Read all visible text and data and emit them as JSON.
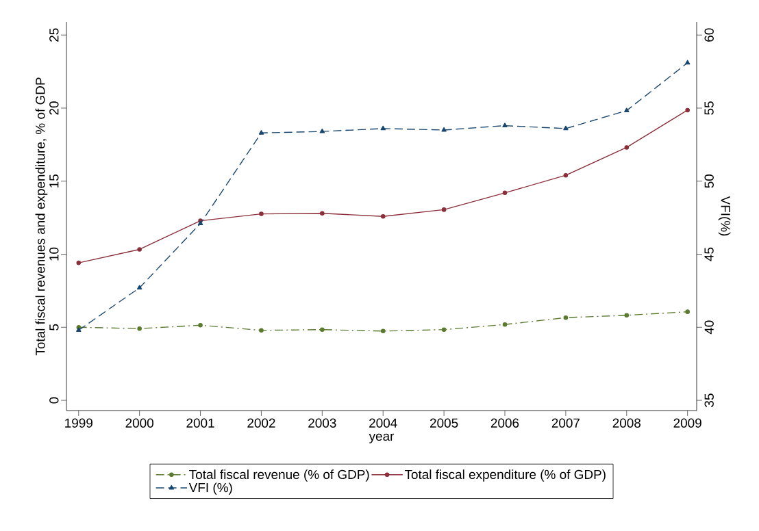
{
  "chart_data": {
    "type": "line",
    "xlabel": "year",
    "ylabel": "Total fiscal revenues and expenditure, % of GDP",
    "y2label": "VFI(%)",
    "x": [
      1999,
      2000,
      2001,
      2002,
      2003,
      2004,
      2005,
      2006,
      2007,
      2008,
      2009
    ],
    "xlim": [
      1998.8,
      2009.15
    ],
    "xticks": [
      1999,
      2000,
      2001,
      2002,
      2003,
      2004,
      2005,
      2006,
      2007,
      2008,
      2009
    ],
    "ylim": [
      -0.7,
      25.9
    ],
    "yticks": [
      0,
      5,
      10,
      15,
      20,
      25
    ],
    "y2lim": [
      34.3,
      60.9
    ],
    "y2ticks": [
      35,
      40,
      45,
      50,
      55,
      60
    ],
    "legend": "bottom",
    "grid": false,
    "series": [
      {
        "name": "Total fiscal revenue (% of GDP)",
        "color": "#5a7a2e",
        "marker": "circle",
        "line_style": "dashdot",
        "values": [
          5.0,
          4.91,
          5.14,
          4.79,
          4.84,
          4.74,
          4.84,
          5.19,
          5.66,
          5.82,
          6.06
        ]
      },
      {
        "name": "Total fiscal expenditure (% of GDP)",
        "color": "#8b2f3a",
        "marker": "circle",
        "line_style": "solid",
        "values": [
          9.41,
          10.33,
          12.29,
          12.76,
          12.8,
          12.59,
          13.05,
          14.2,
          15.4,
          17.31,
          19.86
        ]
      },
      {
        "name": "VFI (%)",
        "color": "#1a476f",
        "marker": "triangle",
        "line_style": "dashed",
        "axis": "y2",
        "values": [
          39.8,
          42.7,
          47.1,
          53.3,
          53.4,
          53.6,
          53.5,
          53.8,
          53.6,
          54.83,
          58.1
        ]
      }
    ]
  }
}
